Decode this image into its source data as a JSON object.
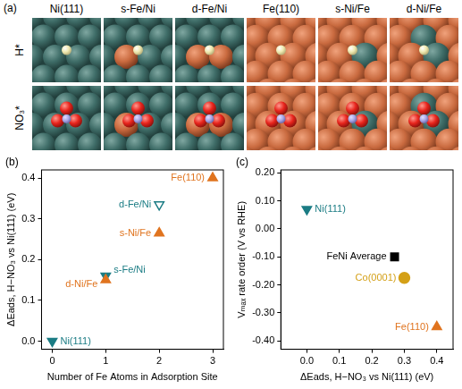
{
  "panel_a": {
    "label": "(a)",
    "columns": [
      "Ni(111)",
      "s-Fe/Ni",
      "d-Fe/Ni",
      "Fe(110)",
      "s-Ni/Fe",
      "d-Ni/Fe"
    ],
    "rows": [
      "H*",
      "NO₃*"
    ]
  },
  "chart_data": [
    {
      "panel": "(b)",
      "type": "scatter",
      "x_label": "Number of Fe Atoms in Adsorption Site",
      "y_label": "ΔEads, H−NO₃ vs Ni(111) (eV)",
      "xlim": [
        -0.2,
        3.2
      ],
      "xticks": [
        0,
        1,
        2,
        3
      ],
      "ylim": [
        -0.02,
        0.42
      ],
      "yticks": [
        {
          "value": 0,
          "label": "0.0"
        },
        0.1,
        0.2,
        0.3,
        0.4
      ],
      "grid": false,
      "points": [
        {
          "label": "Ni(111)",
          "x": 0,
          "y": 0.0,
          "color": "#1b7c84",
          "marker": "triangle-down"
        },
        {
          "label": "s-Fe/Ni",
          "x": 1,
          "y": 0.16,
          "color": "#1b7c84",
          "marker": "triangle-down"
        },
        {
          "label": "d-Ni/Fe",
          "x": 1,
          "y": 0.15,
          "color": "#e0741f",
          "marker": "triangle"
        },
        {
          "label": "d-Fe/Ni",
          "x": 2,
          "y": 0.335,
          "color": "#1b7c84",
          "marker": "triangle-down-open"
        },
        {
          "label": "s-Ni/Fe",
          "x": 2,
          "y": 0.265,
          "color": "#e0741f",
          "marker": "triangle"
        },
        {
          "label": "Fe(110)",
          "x": 3,
          "y": 0.4,
          "color": "#e0741f",
          "marker": "triangle"
        }
      ]
    },
    {
      "panel": "(c)",
      "type": "scatter",
      "x_label": "ΔEads, H−NO₃ vs Ni(111) (eV)",
      "y_label": "Vₘₐₓ rate order (V vs RHE)",
      "xlim": [
        -0.08,
        0.45
      ],
      "xticks": [
        {
          "value": 0,
          "label": "0.0"
        },
        0.1,
        0.2,
        0.3,
        0.4
      ],
      "ylim": [
        -0.43,
        0.21
      ],
      "yticks": [
        {
          "value": 0.2,
          "label": "0.20"
        },
        {
          "value": 0.1,
          "label": "0.10"
        },
        {
          "value": 0,
          "label": "0.00"
        },
        {
          "value": -0.1,
          "label": "-0.10"
        },
        {
          "value": -0.2,
          "label": "-0.20"
        },
        {
          "value": -0.3,
          "label": "-0.30"
        },
        {
          "value": -0.4,
          "label": "-0.40"
        }
      ],
      "grid": false,
      "points": [
        {
          "label": "Ni(111)",
          "x": 0.0,
          "y": 0.07,
          "color": "#1b7c84",
          "marker": "triangle-down"
        },
        {
          "label": "FeNi Average",
          "x": 0.27,
          "y": -0.1,
          "color": "#000000",
          "marker": "square"
        },
        {
          "label": "Co(0001)",
          "x": 0.3,
          "y": -0.175,
          "color": "#d4a017",
          "marker": "circle"
        },
        {
          "label": "Fe(110)",
          "x": 0.4,
          "y": -0.35,
          "color": "#e0741f",
          "marker": "triangle"
        }
      ]
    }
  ]
}
